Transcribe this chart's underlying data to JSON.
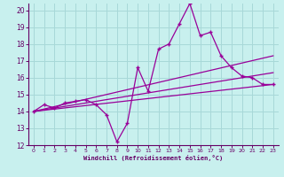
{
  "xlabel": "Windchill (Refroidissement éolien,°C)",
  "bg_color": "#c8f0ee",
  "grid_color": "#a8d8d8",
  "line_color": "#990099",
  "axis_color": "#660066",
  "tick_color": "#660066",
  "xlim": [
    -0.5,
    23.5
  ],
  "ylim": [
    12,
    20.4
  ],
  "yticks": [
    12,
    13,
    14,
    15,
    16,
    17,
    18,
    19,
    20
  ],
  "xticks": [
    0,
    1,
    2,
    3,
    4,
    5,
    6,
    7,
    8,
    9,
    10,
    11,
    12,
    13,
    14,
    15,
    16,
    17,
    18,
    19,
    20,
    21,
    22,
    23
  ],
  "series1_x": [
    0,
    1,
    2,
    3,
    4,
    5,
    6,
    7,
    8,
    9,
    10,
    11,
    12,
    13,
    14,
    15,
    16,
    17,
    18,
    19,
    20,
    21,
    22,
    23
  ],
  "series1_y": [
    14.0,
    14.4,
    14.2,
    14.5,
    14.6,
    14.7,
    14.4,
    13.8,
    12.2,
    13.3,
    16.6,
    15.2,
    17.7,
    18.0,
    19.2,
    20.4,
    18.5,
    18.7,
    17.3,
    16.6,
    16.1,
    16.0,
    15.6,
    15.6
  ],
  "series2_x": [
    0,
    23
  ],
  "series2_y": [
    14.0,
    15.6
  ],
  "series3_x": [
    0,
    23
  ],
  "series3_y": [
    14.0,
    16.3
  ],
  "series4_x": [
    0,
    23
  ],
  "series4_y": [
    14.0,
    17.3
  ]
}
